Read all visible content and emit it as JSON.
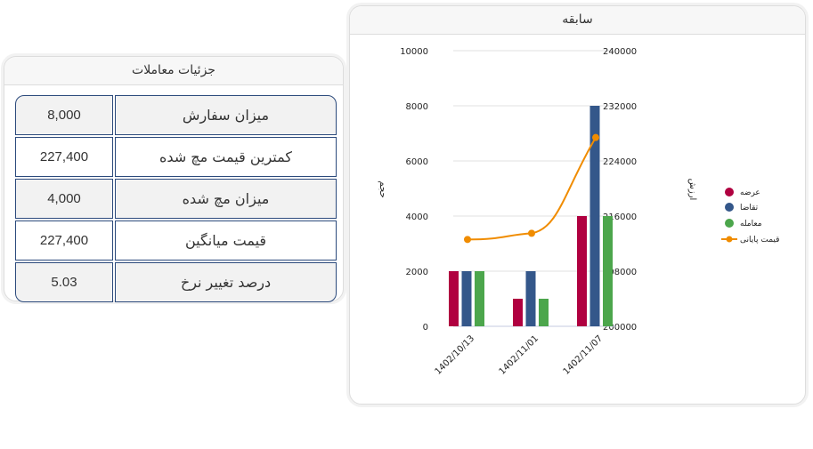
{
  "details": {
    "title": "جزئیات معاملات",
    "rows": [
      {
        "label": "میزان سفارش",
        "value": "8,000"
      },
      {
        "label": "کمترین قیمت مچ شده",
        "value": "227,400"
      },
      {
        "label": "میزان مچ شده",
        "value": "4,000"
      },
      {
        "label": "قیمت میانگین",
        "value": "227,400"
      },
      {
        "label": "درصد تغییر نرخ",
        "value": "5.03"
      }
    ]
  },
  "history": {
    "title": "سابقه"
  },
  "colors": {
    "offer": "#b00040",
    "demand": "#34578a",
    "trade": "#4ca64c",
    "price": "#f08c00"
  },
  "chart_data": {
    "type": "bar",
    "title": "سابقه",
    "categories": [
      "1402/10/13",
      "1402/11/01",
      "1402/11/07"
    ],
    "series": [
      {
        "name": "عرضه",
        "type": "bar",
        "axis": "left",
        "values": [
          2000,
          1000,
          4000
        ]
      },
      {
        "name": "تقاضا",
        "type": "bar",
        "axis": "left",
        "values": [
          2000,
          2000,
          8000
        ]
      },
      {
        "name": "معامله",
        "type": "bar",
        "axis": "left",
        "values": [
          2000,
          1000,
          4000
        ]
      },
      {
        "name": "قیمت پایانی",
        "type": "line",
        "axis": "right",
        "values": [
          212600,
          213500,
          227400
        ]
      }
    ],
    "ylabel": "حجم",
    "y2label": "ارزش",
    "ylim": [
      0,
      10000
    ],
    "y2lim": [
      200000,
      240000
    ],
    "yticks": [
      "0",
      "2000",
      "4000",
      "6000",
      "8000",
      "10000"
    ],
    "y2ticks": [
      "200000",
      "208000",
      "216000",
      "224000",
      "232000",
      "240000"
    ],
    "legend_position": "right",
    "grid": true
  }
}
